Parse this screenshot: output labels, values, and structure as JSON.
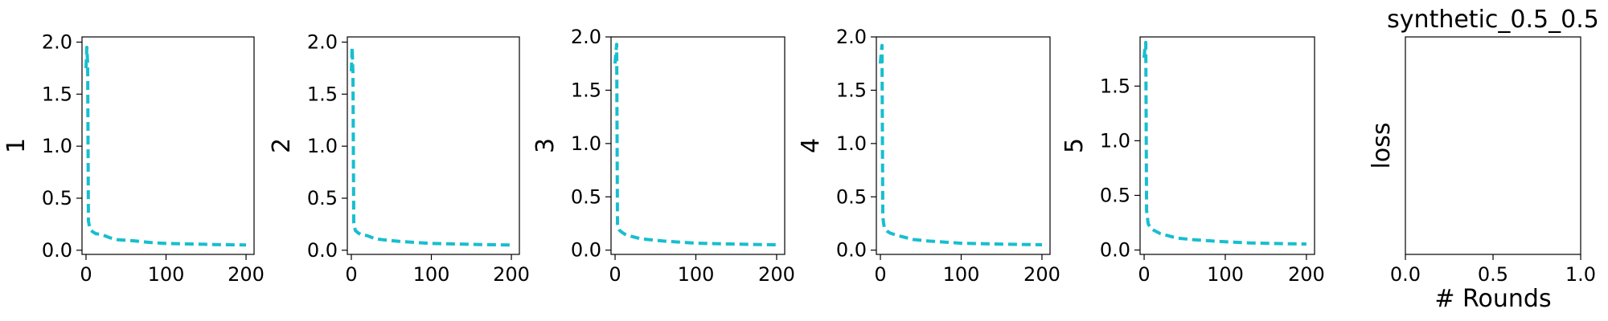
{
  "chart_data": [
    {
      "type": "line",
      "ylabel": "1",
      "xlim": [
        -5,
        210
      ],
      "ylim": [
        -0.04,
        2.05
      ],
      "xticks": [
        0,
        100,
        200
      ],
      "xtick_labels": [
        "0",
        "100",
        "200"
      ],
      "yticks": [
        0.0,
        0.5,
        1.0,
        1.5,
        2.0
      ],
      "ytick_labels": [
        "0.0",
        "0.5",
        "1.0",
        "1.5",
        "2.0"
      ],
      "series": [
        {
          "color": "#17becf",
          "style": "dashed",
          "x": [
            0,
            1,
            2,
            3,
            4,
            5,
            8,
            12,
            20,
            30,
            40,
            60,
            80,
            100,
            130,
            160,
            200
          ],
          "y": [
            1.75,
            1.95,
            1.8,
            0.28,
            0.24,
            0.2,
            0.18,
            0.16,
            0.15,
            0.12,
            0.1,
            0.09,
            0.075,
            0.065,
            0.06,
            0.055,
            0.05
          ]
        }
      ]
    },
    {
      "type": "line",
      "ylabel": "2",
      "xlim": [
        -5,
        210
      ],
      "ylim": [
        -0.04,
        2.05
      ],
      "xticks": [
        0,
        100,
        200
      ],
      "xtick_labels": [
        "0",
        "100",
        "200"
      ],
      "yticks": [
        0.0,
        0.5,
        1.0,
        1.5,
        2.0
      ],
      "ytick_labels": [
        "0.0",
        "0.5",
        "1.0",
        "1.5",
        "2.0"
      ],
      "series": [
        {
          "color": "#17becf",
          "style": "dashed",
          "x": [
            0,
            1,
            2,
            3,
            4,
            5,
            8,
            12,
            20,
            30,
            40,
            60,
            80,
            100,
            130,
            160,
            200
          ],
          "y": [
            1.72,
            1.95,
            1.7,
            0.26,
            0.22,
            0.19,
            0.17,
            0.15,
            0.14,
            0.11,
            0.1,
            0.085,
            0.075,
            0.065,
            0.06,
            0.055,
            0.05
          ]
        }
      ]
    },
    {
      "type": "line",
      "ylabel": "3",
      "xlim": [
        -5,
        210
      ],
      "ylim": [
        -0.04,
        2.0
      ],
      "xticks": [
        0,
        100,
        200
      ],
      "xtick_labels": [
        "0",
        "100",
        "200"
      ],
      "yticks": [
        0.0,
        0.5,
        1.0,
        1.5,
        2.0
      ],
      "ytick_labels": [
        "0.0",
        "0.5",
        "1.0",
        "1.5",
        "2.0"
      ],
      "series": [
        {
          "color": "#17becf",
          "style": "dashed",
          "x": [
            0,
            1,
            2,
            3,
            4,
            5,
            8,
            12,
            20,
            30,
            40,
            60,
            80,
            100,
            130,
            160,
            200
          ],
          "y": [
            1.75,
            1.85,
            1.93,
            0.25,
            0.21,
            0.19,
            0.17,
            0.15,
            0.13,
            0.11,
            0.1,
            0.085,
            0.075,
            0.065,
            0.06,
            0.055,
            0.05
          ]
        }
      ]
    },
    {
      "type": "line",
      "ylabel": "4",
      "xlim": [
        -5,
        210
      ],
      "ylim": [
        -0.04,
        2.0
      ],
      "xticks": [
        0,
        100,
        200
      ],
      "xtick_labels": [
        "0",
        "100",
        "200"
      ],
      "yticks": [
        0.0,
        0.5,
        1.0,
        1.5,
        2.0
      ],
      "ytick_labels": [
        "0.0",
        "0.5",
        "1.0",
        "1.5",
        "2.0"
      ],
      "series": [
        {
          "color": "#17becf",
          "style": "dashed",
          "x": [
            0,
            1,
            2,
            3,
            4,
            5,
            8,
            12,
            20,
            30,
            40,
            60,
            80,
            100,
            130,
            160,
            200
          ],
          "y": [
            1.75,
            1.85,
            1.92,
            0.32,
            0.25,
            0.21,
            0.18,
            0.16,
            0.14,
            0.12,
            0.1,
            0.085,
            0.075,
            0.065,
            0.06,
            0.055,
            0.05
          ]
        }
      ]
    },
    {
      "type": "line",
      "ylabel": "5",
      "xlim": [
        -5,
        210
      ],
      "ylim": [
        -0.04,
        1.95
      ],
      "xticks": [
        0,
        100,
        200
      ],
      "xtick_labels": [
        "0",
        "100",
        "200"
      ],
      "yticks": [
        0.0,
        0.5,
        1.0,
        1.5
      ],
      "ytick_labels": [
        "0.0",
        "0.5",
        "1.0",
        "1.5"
      ],
      "series": [
        {
          "color": "#17becf",
          "style": "dashed",
          "x": [
            0,
            1,
            2,
            3,
            4,
            5,
            8,
            12,
            20,
            30,
            40,
            60,
            80,
            100,
            130,
            160,
            200
          ],
          "y": [
            1.76,
            1.85,
            1.9,
            0.36,
            0.3,
            0.24,
            0.2,
            0.18,
            0.15,
            0.13,
            0.11,
            0.095,
            0.085,
            0.075,
            0.065,
            0.06,
            0.055
          ]
        }
      ]
    },
    {
      "type": "line",
      "title": "synthetic_0.5_0.5",
      "xlabel": "# Rounds",
      "ylabel": "loss",
      "xlim": [
        0,
        1
      ],
      "ylim": [
        0,
        1
      ],
      "xticks": [
        0,
        0.5,
        1
      ],
      "xtick_labels": [
        "0.0",
        "0.5",
        "1.0"
      ],
      "yticks": [],
      "ytick_labels": [],
      "series": []
    }
  ]
}
